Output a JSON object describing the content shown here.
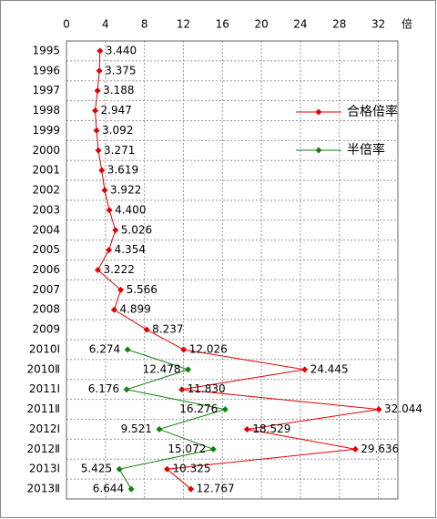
{
  "chart_data": {
    "type": "line",
    "orientation": "horizontal",
    "x_unit": "倍",
    "categories": [
      "1995",
      "1996",
      "1997",
      "1998",
      "1999",
      "2000",
      "2001",
      "2002",
      "2003",
      "2004",
      "2005",
      "2006",
      "2007",
      "2008",
      "2009",
      "2010Ⅰ",
      "2010Ⅱ",
      "2011Ⅰ",
      "2011Ⅱ",
      "2012Ⅰ",
      "2012Ⅱ",
      "2013Ⅰ",
      "2013Ⅱ"
    ],
    "series": [
      {
        "name": "合格倍率",
        "color": "#e00000",
        "values": [
          3.44,
          3.375,
          3.188,
          2.947,
          3.092,
          3.271,
          3.619,
          3.922,
          4.4,
          5.026,
          4.354,
          3.222,
          5.566,
          4.899,
          8.237,
          12.026,
          24.445,
          11.83,
          32.044,
          18.529,
          29.636,
          10.325,
          12.767
        ],
        "value_labels": [
          "3.440",
          "3.375",
          "3.188",
          "2.947",
          "3.092",
          "3.271",
          "3.619",
          "3.922",
          "4.400",
          "5.026",
          "4.354",
          "3.222",
          "5.566",
          "4.899",
          "8.237",
          "12.026",
          "24.445",
          "11.830",
          "32.044",
          "18.529",
          "29.636",
          "10.325",
          "12.767"
        ]
      },
      {
        "name": "半倍率",
        "color": "#108010",
        "values": [
          null,
          null,
          null,
          null,
          null,
          null,
          null,
          null,
          null,
          null,
          null,
          null,
          null,
          null,
          null,
          6.274,
          12.478,
          6.176,
          16.276,
          9.521,
          15.072,
          5.425,
          6.644
        ],
        "value_labels": [
          null,
          null,
          null,
          null,
          null,
          null,
          null,
          null,
          null,
          null,
          null,
          null,
          null,
          null,
          null,
          "6.274",
          "12.478",
          "6.176",
          "16.276",
          "9.521",
          "15.072",
          "5.425",
          "6.644"
        ]
      }
    ],
    "xlim": [
      0,
      34
    ],
    "xticks": [
      0,
      4,
      8,
      12,
      16,
      20,
      24,
      28,
      32
    ],
    "grid": true
  }
}
